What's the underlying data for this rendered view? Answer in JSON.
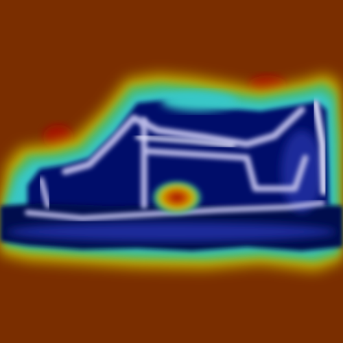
{
  "image": {
    "subject": "sneaker",
    "style": "heatmap-overlay",
    "colors": {
      "background": "#7a2e00",
      "hot_red": "#a31000",
      "orange": "#c95a00",
      "yellow": "#c8b400",
      "green": "#4fb865",
      "cyan": "#39c7c7",
      "blue": "#1a2a9a",
      "navy": "#000f6a",
      "deep_navy": "#00084d",
      "lavender": "#b8b8e6",
      "white_highlight": "#e8e8ff"
    },
    "hotspots": [
      {
        "name": "heel-hotspot",
        "color": "hot_red"
      },
      {
        "name": "toe-hotspot",
        "color": "hot_red"
      },
      {
        "name": "midfoot-hotspot",
        "color": "hot_red"
      }
    ]
  }
}
